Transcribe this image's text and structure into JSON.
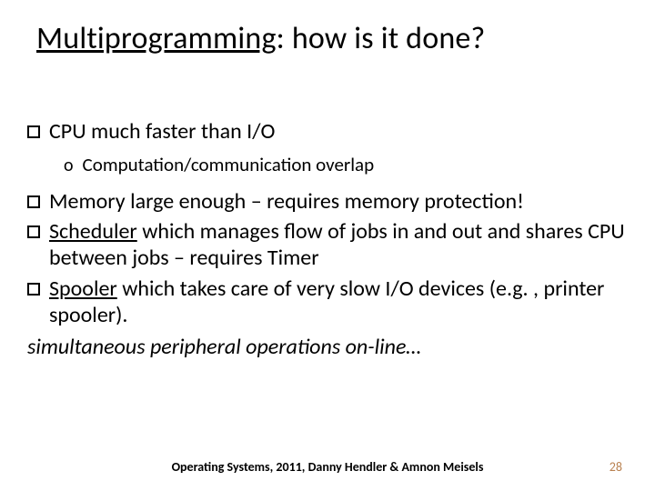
{
  "title": {
    "underlined": "Multiprogramming",
    "rest": ": how is it done?"
  },
  "bullets": {
    "b1": "CPU much faster than I/O",
    "b1_sub": "Computation/communication overlap",
    "b2": "Memory large enough  – requires memory protection!",
    "b3_u": "Scheduler",
    "b3_rest": " which manages flow of jobs in and out and shares CPU between jobs – requires Timer",
    "b4_u": "Spooler",
    "b4_rest": " which takes care of very slow I/O devices (e.g. , printer spooler)."
  },
  "italic_line": "simultaneous peripheral operations on-line…",
  "footer": "Operating Systems, 2011, Danny Hendler & Amnon Meisels",
  "page_number": "28",
  "colors": {
    "text": "#000000",
    "background": "#ffffff",
    "page_number": "#b98251"
  }
}
